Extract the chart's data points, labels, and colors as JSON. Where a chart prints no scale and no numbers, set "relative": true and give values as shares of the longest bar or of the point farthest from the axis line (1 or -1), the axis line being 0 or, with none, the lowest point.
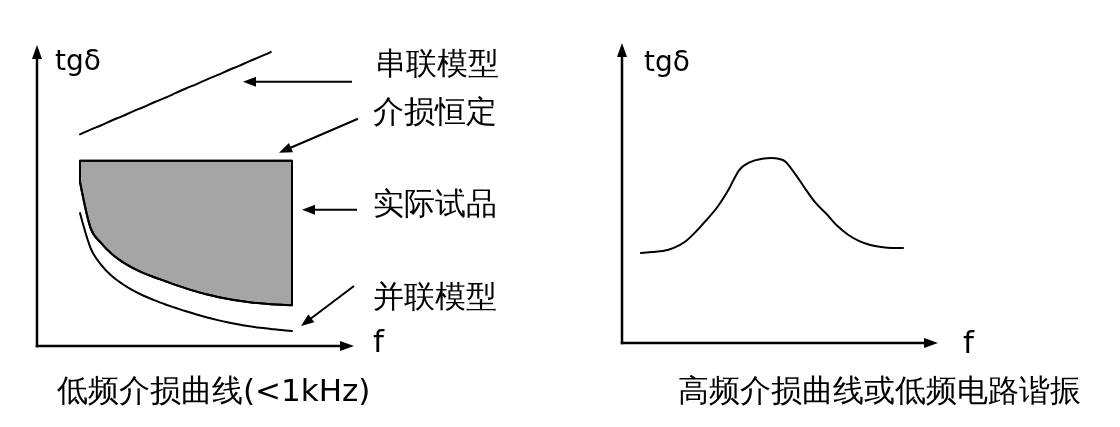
{
  "chart_data": [
    {
      "type": "line",
      "title": "低频介损曲线(<1kHz)",
      "xlabel": "f",
      "ylabel": "tgδ",
      "relative": true,
      "legend": "right",
      "categories": [
        null,
        null,
        null,
        null,
        null,
        null,
        null,
        null,
        null,
        null,
        null,
        null,
        null,
        null,
        null,
        null,
        null,
        null,
        null,
        null,
        null
      ],
      "series": [
        {
          "name": "串联模型",
          "color": "#000000",
          "values": [
            0.72,
            0.736,
            0.751,
            0.767,
            0.782,
            0.798,
            0.813,
            0.829,
            0.844,
            0.86,
            0.876,
            0.891,
            0.907,
            0.922,
            0.938,
            0.953,
            0.969,
            0.984,
            1.0,
            null,
            null
          ]
        },
        {
          "name": "介损恒定",
          "color": "#000000",
          "values": [
            0.63,
            0.63,
            0.63,
            0.63,
            0.63,
            0.63,
            0.63,
            0.63,
            0.63,
            0.63,
            0.63,
            0.63,
            0.63,
            0.63,
            0.63,
            0.63,
            0.63,
            0.63,
            0.63,
            0.63,
            0.63
          ]
        },
        {
          "name": "实际试品",
          "color": "#000000",
          "values": [
            0.558,
            0.401,
            0.35,
            0.313,
            0.286,
            0.265,
            0.248,
            0.234,
            0.221,
            0.208,
            0.196,
            0.185,
            0.175,
            0.167,
            0.16,
            0.154,
            0.149,
            0.145,
            0.142,
            0.14,
            0.139
          ],
          "lower": [
            0.558,
            0.401,
            0.35,
            0.313,
            0.286,
            0.265,
            0.248,
            0.234,
            0.221,
            0.208,
            0.196,
            0.185,
            0.175,
            0.167,
            0.16,
            0.154,
            0.149,
            0.145,
            0.142,
            0.14,
            0.139
          ],
          "upper": [
            0.63,
            0.63,
            0.63,
            0.63,
            0.63,
            0.63,
            0.63,
            0.63,
            0.63,
            0.63,
            0.63,
            0.63,
            0.63,
            0.63,
            0.63,
            0.63,
            0.63,
            0.63,
            0.63,
            0.63,
            0.63
          ]
        },
        {
          "name": "并联模型",
          "color": "#000000",
          "values": [
            0.452,
            0.333,
            0.276,
            0.238,
            0.211,
            0.189,
            0.171,
            0.156,
            0.142,
            0.13,
            0.118,
            0.107,
            0.097,
            0.088,
            0.08,
            0.073,
            0.067,
            0.062,
            0.058,
            0.054,
            0.051
          ]
        }
      ]
    },
    {
      "type": "line",
      "title": "高频介损曲线或低频电路谐振",
      "xlabel": "f",
      "ylabel": "tgδ",
      "relative": true,
      "categories": [
        null,
        null,
        null,
        null,
        null,
        null,
        null,
        null,
        null,
        null,
        null,
        null,
        null,
        null,
        null,
        null,
        null,
        null,
        null,
        null,
        null,
        null,
        null,
        null,
        null
      ],
      "series": [
        {
          "color": "#000000",
          "values": [
            0.486,
            0.492,
            0.497,
            0.514,
            0.546,
            0.6,
            0.665,
            0.735,
            0.827,
            0.935,
            0.978,
            0.995,
            1.0,
            0.989,
            0.924,
            0.838,
            0.757,
            0.697,
            0.632,
            0.584,
            0.551,
            0.53,
            0.519,
            0.514,
            0.514
          ]
        }
      ]
    }
  ]
}
